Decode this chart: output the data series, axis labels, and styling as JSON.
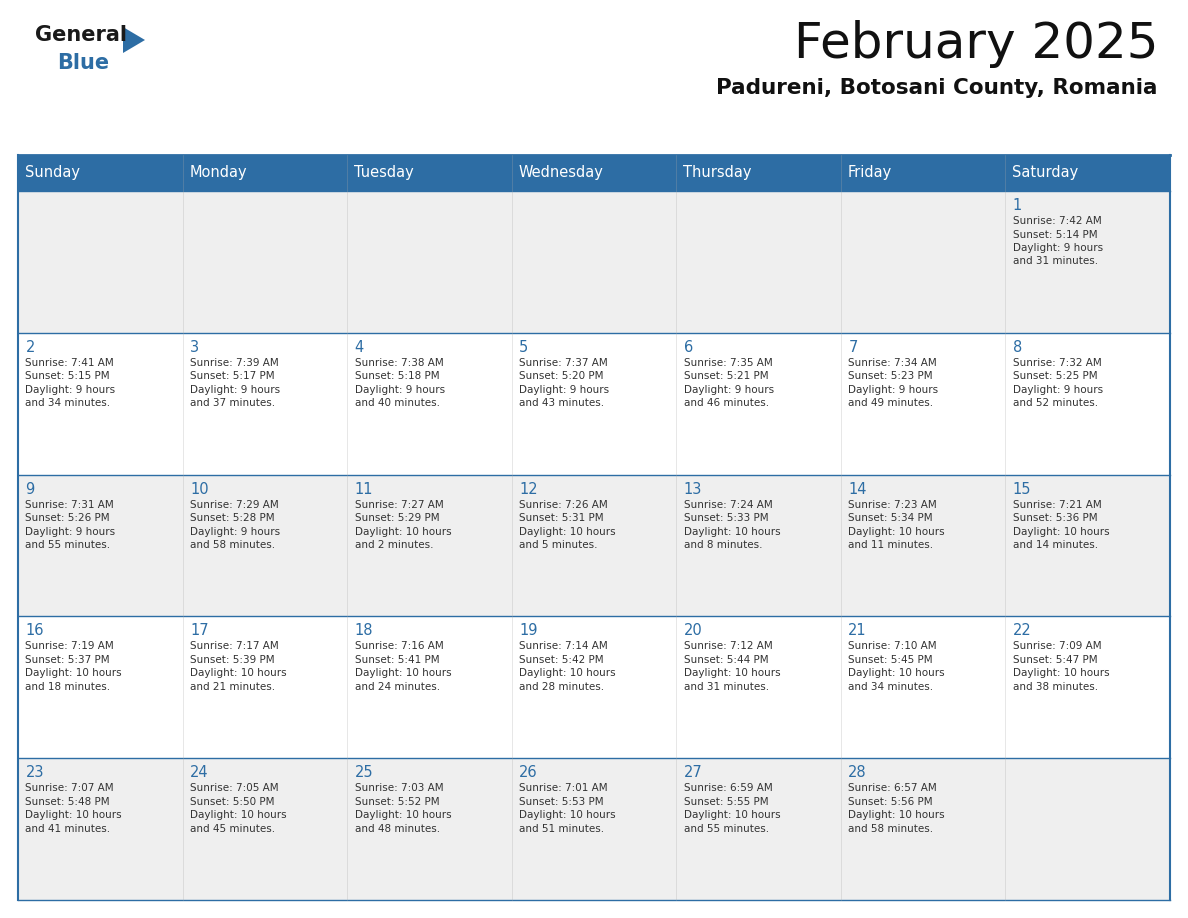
{
  "title": "February 2025",
  "subtitle": "Padureni, Botosani County, Romania",
  "header_bg": "#2D6DA4",
  "header_text_color": "#FFFFFF",
  "days_of_week": [
    "Sunday",
    "Monday",
    "Tuesday",
    "Wednesday",
    "Thursday",
    "Friday",
    "Saturday"
  ],
  "bg_color": "#FFFFFF",
  "cell_bg_even": "#EFEFEF",
  "cell_bg_odd": "#FFFFFF",
  "border_color": "#2D6DA4",
  "text_color": "#333333",
  "day_num_color": "#2D6DA4",
  "logo_general_color": "#1A1A1A",
  "logo_blue_color": "#2D6DA4",
  "calendar": [
    [
      null,
      null,
      null,
      null,
      null,
      null,
      {
        "day": 1,
        "sunrise": "7:42 AM",
        "sunset": "5:14 PM",
        "daylight": "9 hours and 31 minutes."
      }
    ],
    [
      {
        "day": 2,
        "sunrise": "7:41 AM",
        "sunset": "5:15 PM",
        "daylight": "9 hours and 34 minutes."
      },
      {
        "day": 3,
        "sunrise": "7:39 AM",
        "sunset": "5:17 PM",
        "daylight": "9 hours and 37 minutes."
      },
      {
        "day": 4,
        "sunrise": "7:38 AM",
        "sunset": "5:18 PM",
        "daylight": "9 hours and 40 minutes."
      },
      {
        "day": 5,
        "sunrise": "7:37 AM",
        "sunset": "5:20 PM",
        "daylight": "9 hours and 43 minutes."
      },
      {
        "day": 6,
        "sunrise": "7:35 AM",
        "sunset": "5:21 PM",
        "daylight": "9 hours and 46 minutes."
      },
      {
        "day": 7,
        "sunrise": "7:34 AM",
        "sunset": "5:23 PM",
        "daylight": "9 hours and 49 minutes."
      },
      {
        "day": 8,
        "sunrise": "7:32 AM",
        "sunset": "5:25 PM",
        "daylight": "9 hours and 52 minutes."
      }
    ],
    [
      {
        "day": 9,
        "sunrise": "7:31 AM",
        "sunset": "5:26 PM",
        "daylight": "9 hours and 55 minutes."
      },
      {
        "day": 10,
        "sunrise": "7:29 AM",
        "sunset": "5:28 PM",
        "daylight": "9 hours and 58 minutes."
      },
      {
        "day": 11,
        "sunrise": "7:27 AM",
        "sunset": "5:29 PM",
        "daylight": "10 hours and 2 minutes."
      },
      {
        "day": 12,
        "sunrise": "7:26 AM",
        "sunset": "5:31 PM",
        "daylight": "10 hours and 5 minutes."
      },
      {
        "day": 13,
        "sunrise": "7:24 AM",
        "sunset": "5:33 PM",
        "daylight": "10 hours and 8 minutes."
      },
      {
        "day": 14,
        "sunrise": "7:23 AM",
        "sunset": "5:34 PM",
        "daylight": "10 hours and 11 minutes."
      },
      {
        "day": 15,
        "sunrise": "7:21 AM",
        "sunset": "5:36 PM",
        "daylight": "10 hours and 14 minutes."
      }
    ],
    [
      {
        "day": 16,
        "sunrise": "7:19 AM",
        "sunset": "5:37 PM",
        "daylight": "10 hours and 18 minutes."
      },
      {
        "day": 17,
        "sunrise": "7:17 AM",
        "sunset": "5:39 PM",
        "daylight": "10 hours and 21 minutes."
      },
      {
        "day": 18,
        "sunrise": "7:16 AM",
        "sunset": "5:41 PM",
        "daylight": "10 hours and 24 minutes."
      },
      {
        "day": 19,
        "sunrise": "7:14 AM",
        "sunset": "5:42 PM",
        "daylight": "10 hours and 28 minutes."
      },
      {
        "day": 20,
        "sunrise": "7:12 AM",
        "sunset": "5:44 PM",
        "daylight": "10 hours and 31 minutes."
      },
      {
        "day": 21,
        "sunrise": "7:10 AM",
        "sunset": "5:45 PM",
        "daylight": "10 hours and 34 minutes."
      },
      {
        "day": 22,
        "sunrise": "7:09 AM",
        "sunset": "5:47 PM",
        "daylight": "10 hours and 38 minutes."
      }
    ],
    [
      {
        "day": 23,
        "sunrise": "7:07 AM",
        "sunset": "5:48 PM",
        "daylight": "10 hours and 41 minutes."
      },
      {
        "day": 24,
        "sunrise": "7:05 AM",
        "sunset": "5:50 PM",
        "daylight": "10 hours and 45 minutes."
      },
      {
        "day": 25,
        "sunrise": "7:03 AM",
        "sunset": "5:52 PM",
        "daylight": "10 hours and 48 minutes."
      },
      {
        "day": 26,
        "sunrise": "7:01 AM",
        "sunset": "5:53 PM",
        "daylight": "10 hours and 51 minutes."
      },
      {
        "day": 27,
        "sunrise": "6:59 AM",
        "sunset": "5:55 PM",
        "daylight": "10 hours and 55 minutes."
      },
      {
        "day": 28,
        "sunrise": "6:57 AM",
        "sunset": "5:56 PM",
        "daylight": "10 hours and 58 minutes."
      },
      null
    ]
  ]
}
